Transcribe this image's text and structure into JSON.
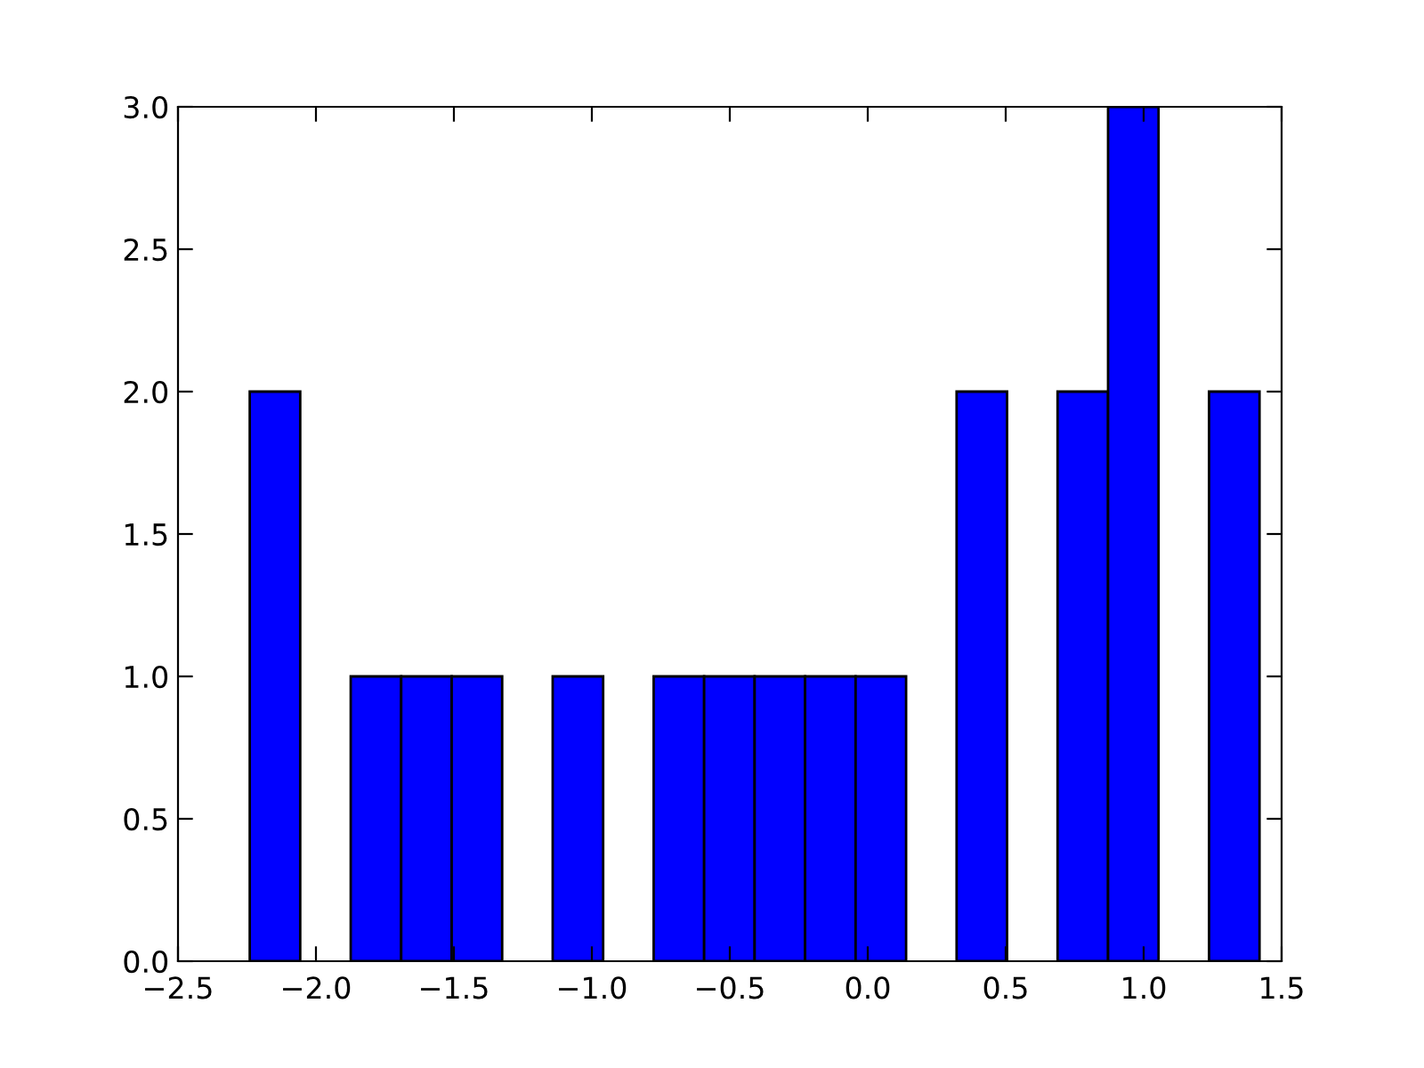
{
  "chart_data": {
    "type": "histogram",
    "bins": [
      -2.24,
      -2.057,
      -1.874,
      -1.691,
      -1.508,
      -1.325,
      -1.142,
      -0.959,
      -0.776,
      -0.593,
      -0.41,
      -0.227,
      -0.044,
      0.139,
      0.322,
      0.505,
      0.688,
      0.871,
      1.054,
      1.237,
      1.42
    ],
    "values": [
      2,
      0,
      1,
      1,
      1,
      0,
      1,
      0,
      1,
      1,
      1,
      1,
      1,
      0,
      2,
      0,
      2,
      3,
      0,
      2
    ],
    "color": "#0000ff",
    "xlim": [
      -2.5,
      1.5
    ],
    "xticks": [
      {
        "value": -2.5,
        "label": "−2.5"
      },
      {
        "value": -2.0,
        "label": "−2.0"
      },
      {
        "value": -1.5,
        "label": "−1.5"
      },
      {
        "value": -1.0,
        "label": "−1.0"
      },
      {
        "value": -0.5,
        "label": "−0.5"
      },
      {
        "value": 0.0,
        "label": "0.0"
      },
      {
        "value": 0.5,
        "label": "0.5"
      },
      {
        "value": 1.0,
        "label": "1.0"
      },
      {
        "value": 1.5,
        "label": "1.5"
      }
    ],
    "ylim": [
      0,
      3
    ],
    "yticks": [
      {
        "value": 0,
        "label": "0.0"
      },
      {
        "value": 0.5,
        "label": "0.5"
      },
      {
        "value": 1,
        "label": "1.0"
      },
      {
        "value": 1.5,
        "label": "1.5"
      },
      {
        "value": 2,
        "label": "2.0"
      },
      {
        "value": 2.5,
        "label": "2.5"
      },
      {
        "value": 3,
        "label": "3.0"
      }
    ],
    "grid": false
  }
}
